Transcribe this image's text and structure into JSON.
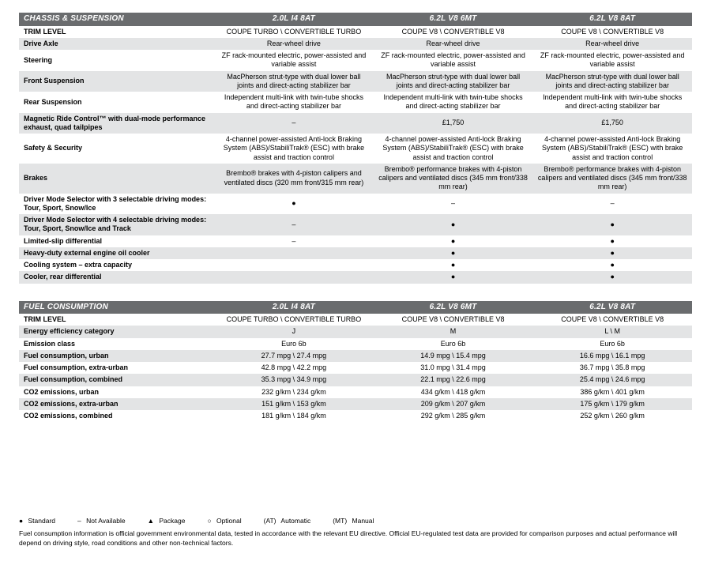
{
  "colors": {
    "header_bg": "#6a6c6e",
    "header_fg": "#ffffff",
    "row_shade": "#e3e4e5",
    "row_plain": "#ffffff",
    "text": "#000000"
  },
  "tables": [
    {
      "section_title": "CHASSIS & SUSPENSION",
      "engines": [
        "2.0L I4 8AT",
        "6.2L V8 6MT",
        "6.2L V8 8AT"
      ],
      "rows": [
        {
          "label": "TRIM LEVEL",
          "cells": [
            "COUPE TURBO \\ CONVERTIBLE TURBO",
            "COUPE V8 \\ CONVERTIBLE V8",
            "COUPE V8 \\ CONVERTIBLE V8"
          ]
        },
        {
          "label": "Drive Axle",
          "cells": [
            "Rear-wheel drive",
            "Rear-wheel drive",
            "Rear-wheel drive"
          ]
        },
        {
          "label": "Steering",
          "cells": [
            "ZF rack-mounted electric, power-assisted and variable assist",
            "ZF rack-mounted electric, power-assisted and variable assist",
            "ZF rack-mounted electric, power-assisted and variable assist"
          ]
        },
        {
          "label": "Front Suspension",
          "cells": [
            "MacPherson strut-type with dual lower ball joints and direct-acting stabilizer bar",
            "MacPherson strut-type with dual lower ball joints and direct-acting stabilizer bar",
            "MacPherson strut-type with dual lower ball joints and direct-acting stabilizer bar"
          ]
        },
        {
          "label": "Rear Suspension",
          "cells": [
            "Independent multi-link with twin-tube shocks and direct-acting stabilizer bar",
            "Independent multi-link with twin-tube shocks and direct-acting stabilizer bar",
            "Independent multi-link with twin-tube shocks and direct-acting stabilizer bar"
          ]
        },
        {
          "label": "Magnetic Ride Control™ with dual-mode performance exhaust, quad tailpipes",
          "cells": [
            "–",
            "£1,750",
            "£1,750"
          ]
        },
        {
          "label": "Safety & Security",
          "cells": [
            "4-channel power-assisted Anti-lock Braking System (ABS)/StabiliTrak® (ESC) with brake assist and traction control",
            "4-channel power-assisted Anti-lock Braking System (ABS)/StabiliTrak® (ESC) with brake assist and traction control",
            "4-channel power-assisted Anti-lock Braking System (ABS)/StabiliTrak® (ESC) with brake assist and traction control"
          ]
        },
        {
          "label": "Brakes",
          "cells": [
            "Brembo® brakes with 4-piston calipers and ventilated discs (320 mm front/315 mm rear)",
            "Brembo® performance brakes with 4-piston calipers and ventilated discs (345 mm front/338 mm rear)",
            "Brembo® performance brakes with 4-piston calipers and ventilated discs (345 mm front/338 mm rear)"
          ]
        },
        {
          "label": "Driver Mode Selector with 3 selectable driving modes: Tour, Sport, Snow/Ice",
          "cells": [
            "●",
            "–",
            "–"
          ]
        },
        {
          "label": "Driver Mode Selector with 4 selectable driving modes: Tour, Sport, Snow/Ice and Track",
          "cells": [
            "–",
            "●",
            "●"
          ]
        },
        {
          "label": "Limited-slip differential",
          "cells": [
            "–",
            "●",
            "●"
          ]
        },
        {
          "label": "Heavy-duty external engine oil cooler",
          "cells": [
            "",
            "●",
            "●"
          ]
        },
        {
          "label": "Cooling system – extra capacity",
          "cells": [
            "",
            "●",
            "●"
          ]
        },
        {
          "label": "Cooler, rear differential",
          "cells": [
            "",
            "●",
            "●"
          ]
        }
      ]
    },
    {
      "section_title": "FUEL CONSUMPTION",
      "engines": [
        "2.0L I4 8AT",
        "6.2L V8 6MT",
        "6.2L V8 8AT"
      ],
      "rows": [
        {
          "label": "TRIM LEVEL",
          "cells": [
            "COUPE TURBO \\ CONVERTIBLE TURBO",
            "COUPE V8 \\ CONVERTIBLE V8",
            "COUPE V8 \\ CONVERTIBLE V8"
          ]
        },
        {
          "label": "Energy efficiency category",
          "cells": [
            "J",
            "M",
            "L \\ M"
          ]
        },
        {
          "label": "Emission class",
          "cells": [
            "Euro 6b",
            "Euro 6b",
            "Euro 6b"
          ]
        },
        {
          "label": "Fuel consumption, urban",
          "cells": [
            "27.7 mpg \\ 27.4 mpg",
            "14.9 mpg \\ 15.4 mpg",
            "16.6 mpg \\ 16.1 mpg"
          ]
        },
        {
          "label": "Fuel consumption, extra-urban",
          "cells": [
            "42.8 mpg \\ 42.2 mpg",
            "31.0 mpg \\ 31.4 mpg",
            "36.7 mpg \\ 35.8 mpg"
          ]
        },
        {
          "label": "Fuel consumption, combined",
          "cells": [
            "35.3 mpg \\ 34.9 mpg",
            "22.1 mpg \\ 22.6 mpg",
            "25.4 mpg \\ 24.6 mpg"
          ]
        },
        {
          "label": "CO2 emissions, urban",
          "cells": [
            "232 g/km \\ 234 g/km",
            "434 g/km \\ 418 g/km",
            "386 g/km \\ 401 g/km"
          ]
        },
        {
          "label": "CO2 emissions, extra-urban",
          "cells": [
            "151 g/km \\ 153 g/km",
            "209 g/km \\ 207 g/km",
            "175 g/km \\ 179 g/km"
          ]
        },
        {
          "label": "CO2 emissions, combined",
          "cells": [
            "181 g/km \\ 184 g/km",
            "292 g/km \\ 285 g/km",
            "252 g/km \\ 260 g/km"
          ]
        }
      ]
    }
  ],
  "legend": {
    "items": [
      {
        "symbol": "●",
        "label": "Standard"
      },
      {
        "symbol": "–",
        "label": "Not Available"
      },
      {
        "symbol": "▲",
        "label": "Package"
      },
      {
        "symbol": "○",
        "label": "Optional"
      },
      {
        "symbol": "(AT)",
        "label": "Automatic"
      },
      {
        "symbol": "(MT)",
        "label": "Manual"
      }
    ],
    "footnote": "Fuel consumption information is official government environmental data, tested in accordance with the relevant EU directive. Official EU-regulated test data are provided for comparison purposes and actual performance will depend on driving style, road conditions and other non-technical factors."
  }
}
